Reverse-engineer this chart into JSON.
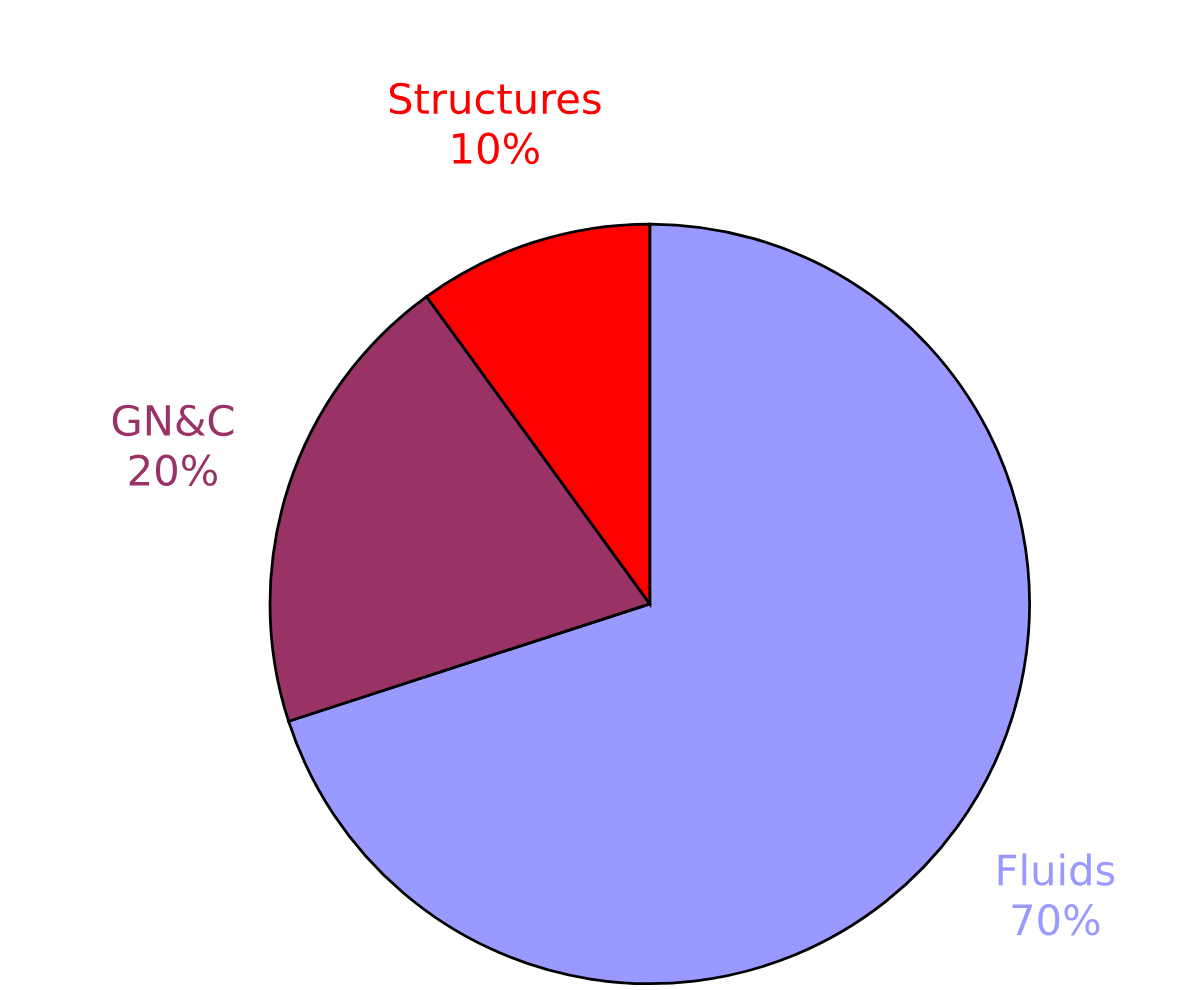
{
  "chart_data": {
    "type": "pie",
    "categories": [
      "Fluids",
      "GN&C",
      "Structures"
    ],
    "values": [
      70,
      20,
      10
    ],
    "value_labels": [
      "70%",
      "20%",
      "10%"
    ],
    "colors": [
      "#9999ff",
      "#993366",
      "#ff0000"
    ]
  }
}
